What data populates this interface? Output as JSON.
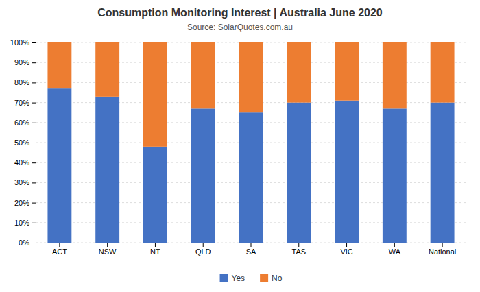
{
  "chart_data": {
    "type": "bar",
    "stacked": true,
    "title": "Consumption Monitoring Interest | Australia June 2020",
    "subtitle": "Source: SolarQuotes.com.au",
    "categories": [
      "ACT",
      "NSW",
      "NT",
      "QLD",
      "SA",
      "TAS",
      "VIC",
      "WA",
      "National"
    ],
    "series": [
      {
        "name": "Yes",
        "color": "#4472C4",
        "values": [
          77,
          73,
          48,
          67,
          65,
          70,
          71,
          67,
          70
        ]
      },
      {
        "name": "No",
        "color": "#ED7D31",
        "values": [
          23,
          27,
          52,
          33,
          35,
          30,
          29,
          33,
          30
        ]
      }
    ],
    "ylim": [
      0,
      100
    ],
    "yticks": [
      {
        "value": 0,
        "label": "0%"
      },
      {
        "value": 10,
        "label": "10%"
      },
      {
        "value": 20,
        "label": "20%"
      },
      {
        "value": 30,
        "label": "30%"
      },
      {
        "value": 40,
        "label": "40%"
      },
      {
        "value": 50,
        "label": "50%"
      },
      {
        "value": 60,
        "label": "60%"
      },
      {
        "value": 70,
        "label": "70%"
      },
      {
        "value": 80,
        "label": "80%"
      },
      {
        "value": 90,
        "label": "90%"
      },
      {
        "value": 100,
        "label": "100%"
      }
    ],
    "grid": true,
    "legend": "bottom"
  }
}
